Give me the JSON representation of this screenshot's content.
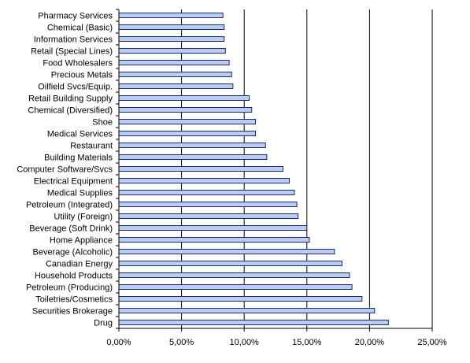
{
  "chart_data": {
    "type": "bar",
    "orientation": "horizontal",
    "categories": [
      "Pharmacy Services",
      "Chemical (Basic)",
      "Information Services",
      "Retail (Special Lines)",
      "Food Wholesalers",
      "Precious Metals",
      "Oilfield Svcs/Equip.",
      "Retail Building Supply",
      "Chemical (Diversified)",
      "Shoe",
      "Medical Services",
      "Restaurant",
      "Building Materials",
      "Computer Software/Svcs",
      "Electrical Equipment",
      "Medical Supplies",
      "Petroleum (Integrated)",
      "Utility (Foreign)",
      "Beverage (Soft Drink)",
      "Home Appliance",
      "Beverage (Alcoholic)",
      "Canadian Energy",
      "Household Products",
      "Petroleum (Producing)",
      "Toiletries/Cosmetics",
      "Securities Brokerage",
      "Drug"
    ],
    "values": [
      0.083,
      0.084,
      0.084,
      0.085,
      0.088,
      0.09,
      0.091,
      0.104,
      0.106,
      0.109,
      0.109,
      0.117,
      0.118,
      0.131,
      0.136,
      0.14,
      0.142,
      0.143,
      0.15,
      0.152,
      0.172,
      0.178,
      0.184,
      0.186,
      0.194,
      0.204,
      0.215
    ],
    "xlim": [
      0,
      0.25
    ],
    "x_ticks": [
      0,
      0.05,
      0.1,
      0.15,
      0.2,
      0.25
    ],
    "x_tick_labels": [
      "0,00%",
      "5,00%",
      "10,00%",
      "15,00%",
      "20,00%",
      "25,00%"
    ],
    "grid": "vertical major gridlines",
    "colors": {
      "bar_fill": "#b9cdf0",
      "bar_stroke": "#1a2a66",
      "grid": "#000000"
    }
  }
}
